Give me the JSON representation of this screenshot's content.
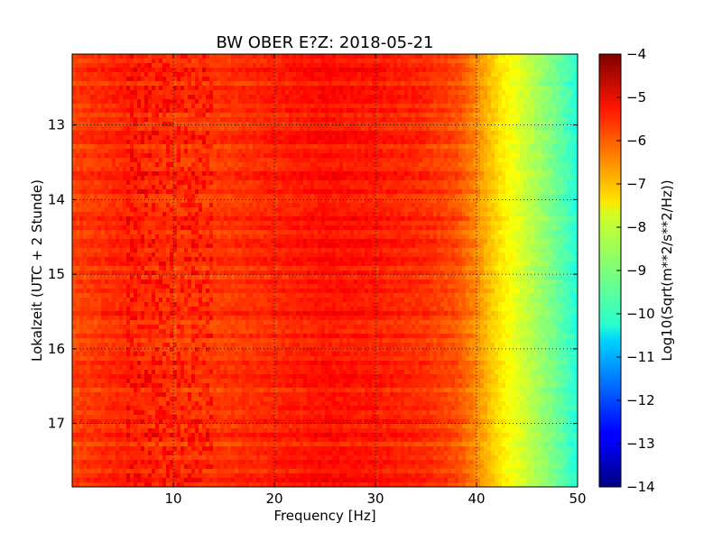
{
  "chart_data": {
    "type": "heatmap",
    "title": "BW OBER E?Z: 2018-05-21",
    "xlabel": "Frequency [Hz]",
    "ylabel": "Lokalzeit (UTC + 2 Stunde)",
    "xlim": [
      0,
      50
    ],
    "ylim": [
      17.85,
      12.05
    ],
    "x_ticks": [
      10,
      20,
      30,
      40,
      50
    ],
    "y_ticks": [
      13,
      14,
      15,
      16,
      17
    ],
    "x_tick_labels": [
      "10",
      "20",
      "30",
      "40",
      "50"
    ],
    "y_tick_labels": [
      "13",
      "14",
      "15",
      "16",
      "17"
    ],
    "grid": true,
    "colormap": "jet",
    "colorbar": {
      "label": "Log10(Sqrt(m**2/s**2/Hz))",
      "range": [
        -14,
        -4
      ],
      "ticks": [
        -4,
        -5,
        -6,
        -7,
        -8,
        -9,
        -10,
        -11,
        -12,
        -13,
        -14
      ],
      "tick_labels": [
        "−4",
        "−5",
        "−6",
        "−7",
        "−8",
        "−9",
        "−10",
        "−11",
        "−12",
        "−13",
        "−14"
      ]
    },
    "spectrum_profile": {
      "frequency_hz": [
        0,
        5,
        10,
        15,
        20,
        25,
        30,
        35,
        38,
        40,
        42,
        44,
        46,
        48,
        50
      ],
      "level": [
        -5.9,
        -5.6,
        -5.8,
        -5.8,
        -5.6,
        -5.4,
        -5.5,
        -5.7,
        -6.0,
        -6.6,
        -7.4,
        -8.0,
        -8.6,
        -9.2,
        -9.9
      ]
    }
  }
}
